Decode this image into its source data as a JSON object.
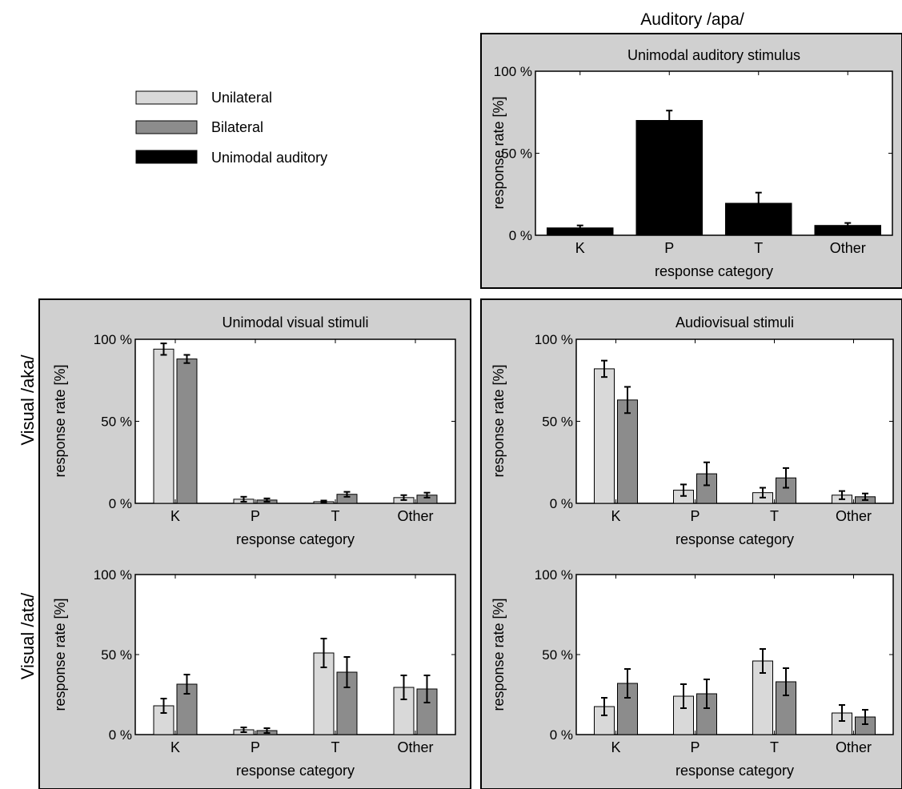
{
  "header": {
    "top_label": "Auditory /apa/"
  },
  "row_labels": {
    "aka": "Visual /aka/",
    "ata": "Visual /ata/"
  },
  "legend": {
    "items": [
      {
        "label": "Unilateral",
        "color": "#d9d9d9"
      },
      {
        "label": "Bilateral",
        "color": "#8c8c8c"
      },
      {
        "label": "Unimodal auditory",
        "color": "#000000"
      }
    ]
  },
  "colors": {
    "panel_bg": "#d0d0d0",
    "unilateral": "#d9d9d9",
    "bilateral": "#8c8c8c",
    "unimodal_auditory": "#000000"
  },
  "chart_data": [
    {
      "type": "bar",
      "title": "Unimodal auditory stimulus",
      "xlabel": "response category",
      "ylabel": "response rate [%]",
      "categories": [
        "K",
        "P",
        "T",
        "Other"
      ],
      "yticks": [
        "0 %",
        "50 %",
        "100 %"
      ],
      "ylim": [
        0,
        100
      ],
      "series": [
        {
          "name": "Unimodal auditory",
          "values": [
            4.5,
            70,
            19.5,
            6
          ],
          "errors": [
            1.5,
            6,
            6.5,
            1.5
          ]
        }
      ]
    },
    {
      "type": "bar",
      "title": "Unimodal visual stimuli",
      "xlabel": "response category",
      "ylabel": "response rate [%]",
      "categories": [
        "K",
        "P",
        "T",
        "Other"
      ],
      "yticks": [
        "0 %",
        "50 %",
        "100 %"
      ],
      "ylim": [
        0,
        100
      ],
      "series": [
        {
          "name": "Unilateral",
          "values": [
            94,
            2.5,
            1,
            3.5
          ],
          "errors": [
            3.5,
            1.5,
            0.7,
            1.5
          ]
        },
        {
          "name": "Bilateral",
          "values": [
            88,
            2,
            5.5,
            5
          ],
          "errors": [
            2.5,
            1,
            1.5,
            1.5
          ]
        }
      ]
    },
    {
      "type": "bar",
      "title": "Audiovisual stimuli",
      "xlabel": "response category",
      "ylabel": "response rate [%]",
      "categories": [
        "K",
        "P",
        "T",
        "Other"
      ],
      "yticks": [
        "0 %",
        "50 %",
        "100 %"
      ],
      "ylim": [
        0,
        100
      ],
      "series": [
        {
          "name": "Unilateral",
          "values": [
            82,
            8,
            6.5,
            5
          ],
          "errors": [
            5,
            3.5,
            3,
            2.5
          ]
        },
        {
          "name": "Bilateral",
          "values": [
            63,
            18,
            15.5,
            4
          ],
          "errors": [
            8,
            7,
            6,
            2
          ]
        }
      ]
    },
    {
      "type": "bar",
      "title": "",
      "xlabel": "response category",
      "ylabel": "response rate [%]",
      "categories": [
        "K",
        "P",
        "T",
        "Other"
      ],
      "yticks": [
        "0 %",
        "50 %",
        "100 %"
      ],
      "ylim": [
        0,
        100
      ],
      "series": [
        {
          "name": "Unilateral",
          "values": [
            18,
            3,
            51,
            29.5
          ],
          "errors": [
            4.5,
            1.5,
            9,
            7.5
          ]
        },
        {
          "name": "Bilateral",
          "values": [
            31.5,
            2.5,
            39,
            28.5
          ],
          "errors": [
            6,
            1.5,
            9.5,
            8.5
          ]
        }
      ]
    },
    {
      "type": "bar",
      "title": "",
      "xlabel": "response category",
      "ylabel": "response rate [%]",
      "categories": [
        "K",
        "P",
        "T",
        "Other"
      ],
      "yticks": [
        "0 %",
        "50 %",
        "100 %"
      ],
      "ylim": [
        0,
        100
      ],
      "series": [
        {
          "name": "Unilateral",
          "values": [
            17.5,
            24,
            46,
            13.5
          ],
          "errors": [
            5.5,
            7.5,
            7.5,
            5
          ]
        },
        {
          "name": "Bilateral",
          "values": [
            32,
            25.5,
            33,
            11
          ],
          "errors": [
            9,
            9,
            8.5,
            4.5
          ]
        }
      ]
    }
  ]
}
